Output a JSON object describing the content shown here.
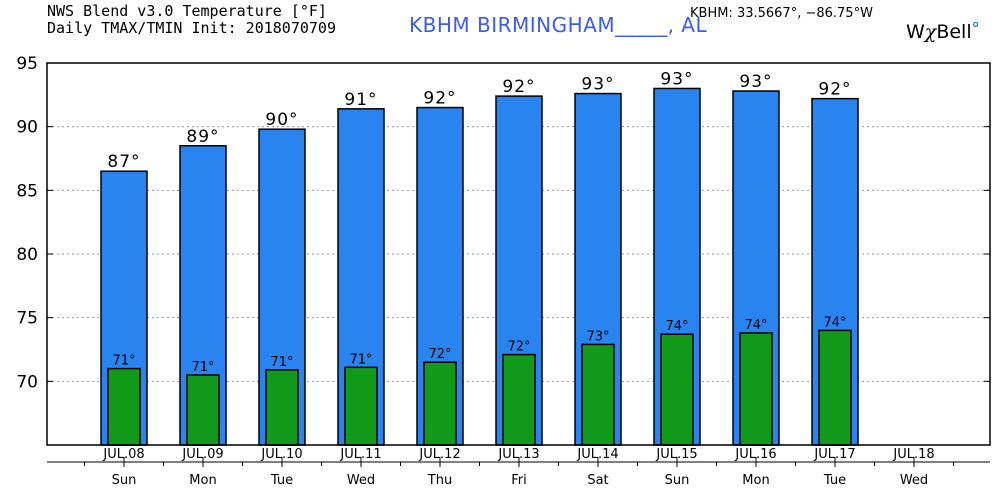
{
  "header": {
    "title_line1": "NWS Blend v3.0 Temperature [°F]",
    "title_line2": "Daily TMAX/TMIN Init: 2018070709",
    "station": "KBHM BIRMINGHAM_____, AL",
    "coords": "KBHM: 33.5667°, −86.75°W",
    "logo_text_w": "W",
    "logo_text_chi": "χ",
    "logo_text_bell": "Bell",
    "logo_text_deg": "°"
  },
  "colors": {
    "tmax_bar": "#2a84f0",
    "tmin_bar": "#119a1a",
    "grid": "#9a9a9a",
    "station_text": "#3b5cf0"
  },
  "chart_data": {
    "type": "bar",
    "title": "NWS Blend v3.0 Temperature [°F] Daily TMAX/TMIN",
    "ylim": [
      65,
      95
    ],
    "yticks": [
      70,
      75,
      80,
      85,
      90,
      95
    ],
    "grid": true,
    "categories": [
      "JUL.08",
      "JUL.09",
      "JUL.10",
      "JUL.11",
      "JUL.12",
      "JUL.13",
      "JUL.14",
      "JUL.15",
      "JUL.16",
      "JUL.17",
      "JUL.18"
    ],
    "days": [
      "Sun",
      "Mon",
      "Tue",
      "Wed",
      "Thu",
      "Fri",
      "Sat",
      "Sun",
      "Mon",
      "Tue",
      "Wed"
    ],
    "series": [
      {
        "name": "TMAX",
        "values": [
          86.5,
          88.5,
          89.8,
          91.4,
          91.5,
          92.4,
          92.6,
          93.0,
          92.8,
          92.2,
          null
        ],
        "labels": [
          "87°",
          "89°",
          "90°",
          "91°",
          "92°",
          "92°",
          "93°",
          "93°",
          "93°",
          "92°",
          null
        ]
      },
      {
        "name": "TMIN",
        "values": [
          71.0,
          70.5,
          70.9,
          71.1,
          71.5,
          72.1,
          72.9,
          73.7,
          73.8,
          74.0,
          null
        ],
        "labels": [
          "71°",
          "71°",
          "71°",
          "71°",
          "72°",
          "72°",
          "73°",
          "74°",
          "74°",
          "74°",
          null
        ]
      }
    ]
  }
}
